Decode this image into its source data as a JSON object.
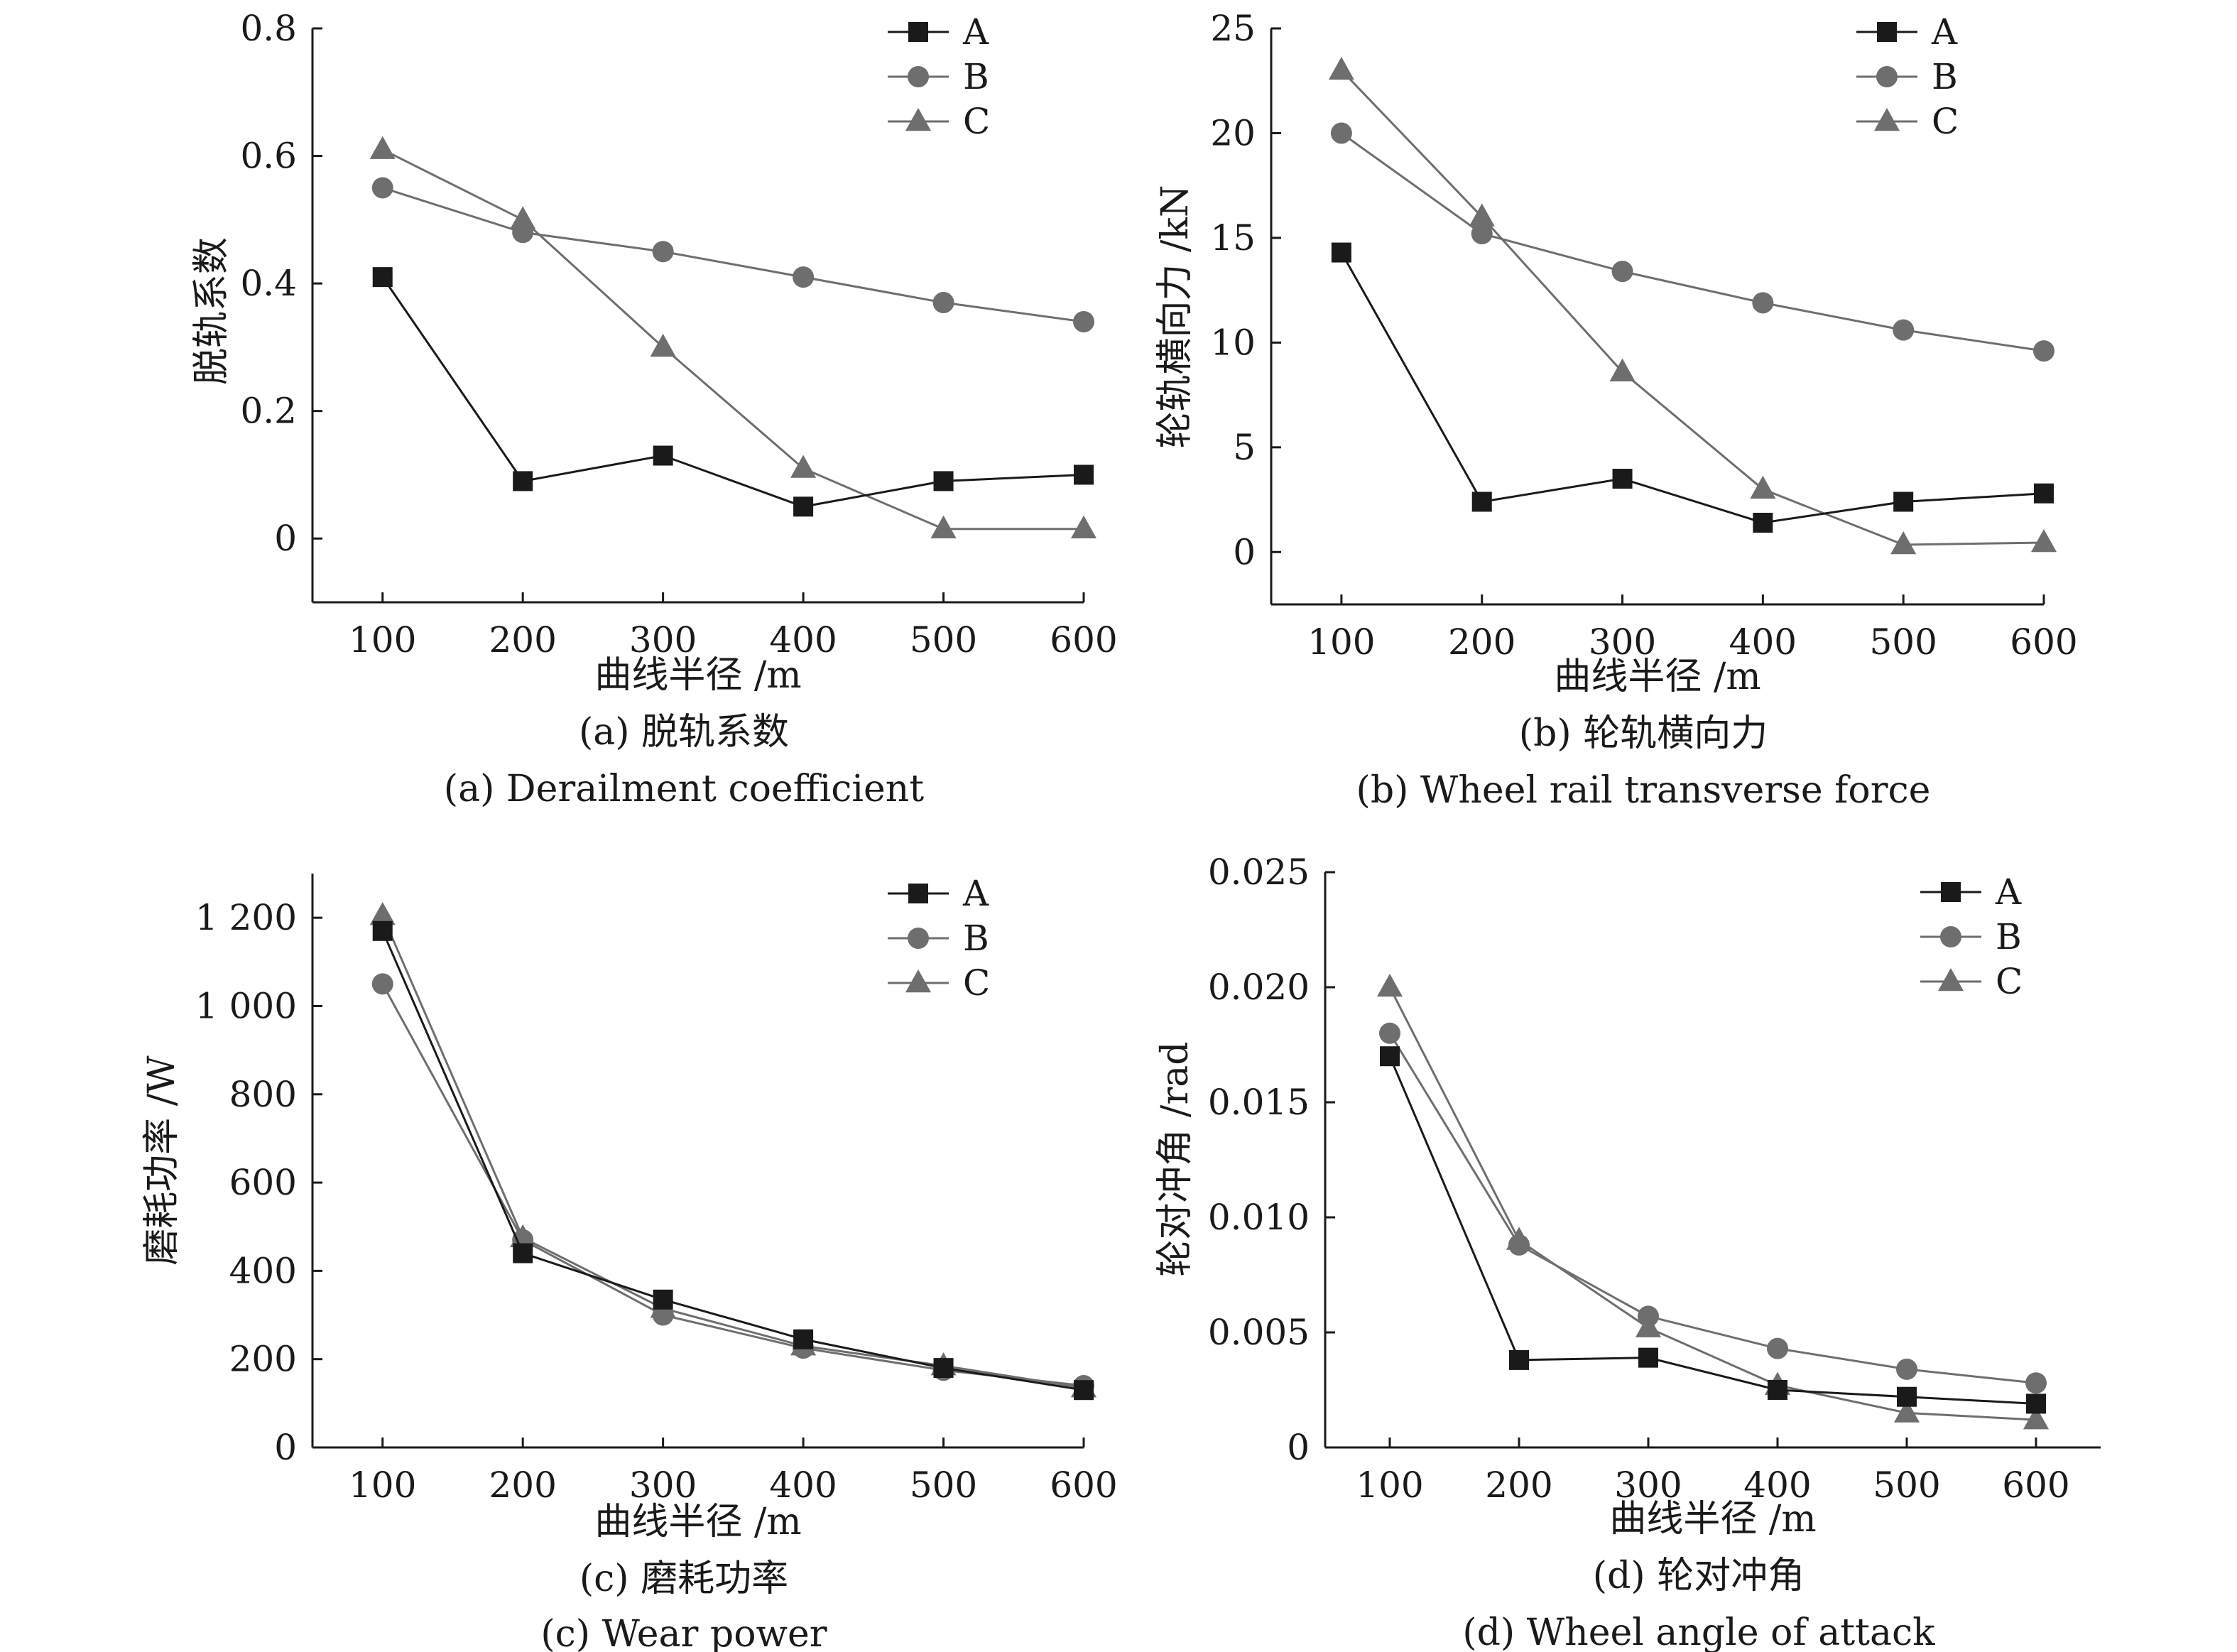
{
  "figure": {
    "colors": {
      "A": "#1a1a1a",
      "B": "#6e6e6e",
      "C": "#6e6e6e",
      "axis": "#1a1a1a"
    },
    "markers": {
      "A": "square",
      "B": "circle",
      "C": "triangle"
    }
  },
  "chart_data": [
    {
      "id": "a",
      "type": "line",
      "xlabel": "曲线半径 /m",
      "ylabel": "脱轨系数",
      "caption_cn": "(a) 脱轨系数",
      "caption_en": "(a) Derailment coefficient",
      "x": [
        100,
        200,
        300,
        400,
        500,
        600
      ],
      "xlim": [
        50,
        600
      ],
      "ylim": [
        -0.1,
        0.8
      ],
      "xticks": [
        100,
        200,
        300,
        400,
        500,
        600
      ],
      "xtick_labels": [
        "100",
        "200",
        "300",
        "400",
        "500",
        "600"
      ],
      "yticks": [
        0,
        0.2,
        0.4,
        0.6,
        0.8
      ],
      "ytick_labels": [
        "0",
        "0.2",
        "0.4",
        "0.6",
        "0.8"
      ],
      "legend_position": "top-right",
      "series": [
        {
          "name": "A",
          "values": [
            0.41,
            0.09,
            0.13,
            0.05,
            0.09,
            0.1
          ]
        },
        {
          "name": "B",
          "values": [
            0.55,
            0.48,
            0.45,
            0.41,
            0.37,
            0.34
          ]
        },
        {
          "name": "C",
          "values": [
            0.61,
            0.5,
            0.3,
            0.11,
            0.015,
            0.015
          ]
        }
      ]
    },
    {
      "id": "b",
      "type": "line",
      "xlabel": "曲线半径 /m",
      "ylabel": "轮轨横向力 /kN",
      "caption_cn": "(b) 轮轨横向力",
      "caption_en": "(b) Wheel rail transverse force",
      "x": [
        100,
        200,
        300,
        400,
        500,
        600
      ],
      "xlim": [
        50,
        600
      ],
      "ylim": [
        -2.5,
        25
      ],
      "xticks": [
        100,
        200,
        300,
        400,
        500,
        600
      ],
      "xtick_labels": [
        "100",
        "200",
        "300",
        "400",
        "500",
        "600"
      ],
      "yticks": [
        0,
        5,
        10,
        15,
        20,
        25
      ],
      "ytick_labels": [
        "0",
        "5",
        "10",
        "15",
        "20",
        "25"
      ],
      "legend_position": "top-right",
      "series": [
        {
          "name": "A",
          "values": [
            14.3,
            2.4,
            3.5,
            1.4,
            2.4,
            2.8
          ]
        },
        {
          "name": "B",
          "values": [
            20.0,
            15.2,
            13.4,
            11.9,
            10.6,
            9.6
          ]
        },
        {
          "name": "C",
          "values": [
            23.0,
            16.0,
            8.6,
            3.0,
            0.35,
            0.45
          ]
        }
      ]
    },
    {
      "id": "c",
      "type": "line",
      "xlabel": "曲线半径 /m",
      "ylabel": "磨耗功率 /W",
      "caption_cn": "(c) 磨耗功率",
      "caption_en": "(c) Wear power",
      "x": [
        100,
        200,
        300,
        400,
        500,
        600
      ],
      "xlim": [
        50,
        600
      ],
      "ylim": [
        0,
        1300
      ],
      "xticks": [
        100,
        200,
        300,
        400,
        500,
        600
      ],
      "xtick_labels": [
        "100",
        "200",
        "300",
        "400",
        "500",
        "600"
      ],
      "yticks": [
        0,
        200,
        400,
        600,
        800,
        1000,
        1200
      ],
      "ytick_labels": [
        "0",
        "200",
        "400",
        "600",
        "800",
        "1 000",
        "1 200"
      ],
      "legend_position": "top-right",
      "series": [
        {
          "name": "A",
          "values": [
            1170,
            440,
            335,
            245,
            180,
            130
          ]
        },
        {
          "name": "B",
          "values": [
            1050,
            470,
            300,
            225,
            175,
            140
          ]
        },
        {
          "name": "C",
          "values": [
            1205,
            475,
            315,
            230,
            185,
            135
          ]
        }
      ]
    },
    {
      "id": "d",
      "type": "line",
      "xlabel": "曲线半径 /m",
      "ylabel": "轮对冲角 /rad",
      "caption_cn": "(d) 轮对冲角",
      "caption_en": "(d) Wheel angle of attack",
      "x": [
        100,
        200,
        300,
        400,
        500,
        600
      ],
      "xlim": [
        50,
        650
      ],
      "ylim": [
        0,
        0.025
      ],
      "xticks": [
        100,
        200,
        300,
        400,
        500,
        600
      ],
      "xtick_labels": [
        "100",
        "200",
        "300",
        "400",
        "500",
        "600"
      ],
      "yticks": [
        0,
        0.005,
        0.01,
        0.015,
        0.02,
        0.025
      ],
      "ytick_labels": [
        "0",
        "0.005",
        "0.010",
        "0.015",
        "0.020",
        "0.025"
      ],
      "legend_position": "top-right",
      "series": [
        {
          "name": "A",
          "values": [
            0.017,
            0.0038,
            0.0039,
            0.0025,
            0.0022,
            0.0019
          ]
        },
        {
          "name": "B",
          "values": [
            0.018,
            0.0088,
            0.0057,
            0.0043,
            0.0034,
            0.0028
          ]
        },
        {
          "name": "C",
          "values": [
            0.02,
            0.009,
            0.0052,
            0.0027,
            0.0015,
            0.0012
          ]
        }
      ]
    }
  ]
}
